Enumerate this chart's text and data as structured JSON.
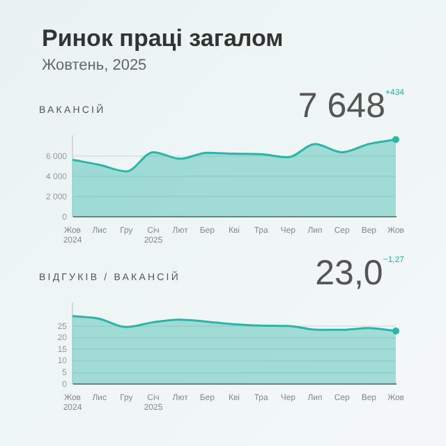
{
  "chart_data": [
    {
      "type": "area",
      "title": "Ринок праці загалом",
      "subtitle": "Жовтень, 2025",
      "ylabel": "ВАКАНСІЙ",
      "categories": [
        "Жов 2024",
        "Лис",
        "Гру",
        "Січ 2025",
        "Лют",
        "Бер",
        "Кві",
        "Тра",
        "Чер",
        "Лип",
        "Сер",
        "Вер",
        "Жов"
      ],
      "series": [
        {
          "color": "#2bb5a8",
          "values": [
            5650,
            5150,
            4500,
            6400,
            5750,
            6350,
            6250,
            6200,
            5900,
            7200,
            6400,
            7214,
            7648
          ]
        }
      ],
      "ylim": [
        0,
        8000
      ],
      "yticks": [
        0,
        {
          "value": 2000,
          "label": "2 000"
        },
        {
          "value": 4000,
          "label": "4 000"
        },
        {
          "value": 6000,
          "label": "6 000"
        }
      ],
      "grid": "y",
      "legend": false,
      "annotations": [
        "7 648",
        "+434"
      ]
    },
    {
      "type": "area",
      "ylabel": "ВІДГУКІВ / ВАКАНСІЙ",
      "categories": [
        "Жов 2024",
        "Лис",
        "Гру",
        "Січ 2025",
        "Лют",
        "Бер",
        "Кві",
        "Тра",
        "Чер",
        "Лип",
        "Сер",
        "Вер",
        "Жов"
      ],
      "series": [
        {
          "color": "#2bb5a8",
          "values": [
            29.5,
            28.3,
            24.7,
            26.8,
            27.9,
            27.0,
            25.9,
            25.3,
            25.2,
            23.6,
            23.5,
            24.3,
            23.0
          ]
        }
      ],
      "ylim": [
        0,
        35
      ],
      "yticks": [
        0,
        5,
        10,
        15,
        20,
        25
      ],
      "grid": "y",
      "legend": false,
      "annotations": [
        "23,0",
        "−1,27"
      ]
    }
  ]
}
